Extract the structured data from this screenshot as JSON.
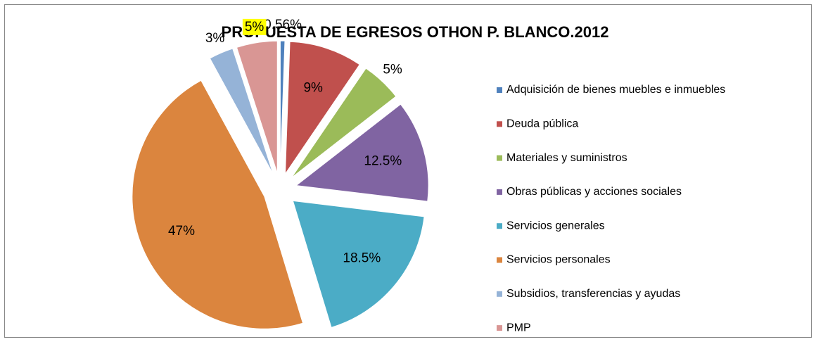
{
  "chart_data": {
    "type": "pie",
    "title": "PROPUESTA DE EGRESOS OTHON P. BLANCO.2012",
    "categories": [
      "Adquisición de bienes muebles e inmuebles",
      "Deuda pública",
      "Materiales y suministros",
      "Obras públicas y acciones sociales",
      "Servicios generales",
      "Servicios personales",
      "Subsidios, transferencias y ayudas",
      "PMP"
    ],
    "values": [
      0.56,
      9,
      5,
      12.5,
      18.5,
      47,
      3,
      5
    ],
    "value_labels": [
      "0.56%",
      "9%",
      "5%",
      "12.5%",
      "18.5%",
      "47%",
      "3%",
      "5%"
    ],
    "colors": [
      "#4f81bd",
      "#c0504d",
      "#9bbb59",
      "#8064a2",
      "#4bacc6",
      "#db853e",
      "#95b3d7",
      "#d99694"
    ],
    "label_backgrounds": [
      null,
      null,
      null,
      null,
      null,
      null,
      null,
      "#ffff00"
    ],
    "legend": "right"
  }
}
